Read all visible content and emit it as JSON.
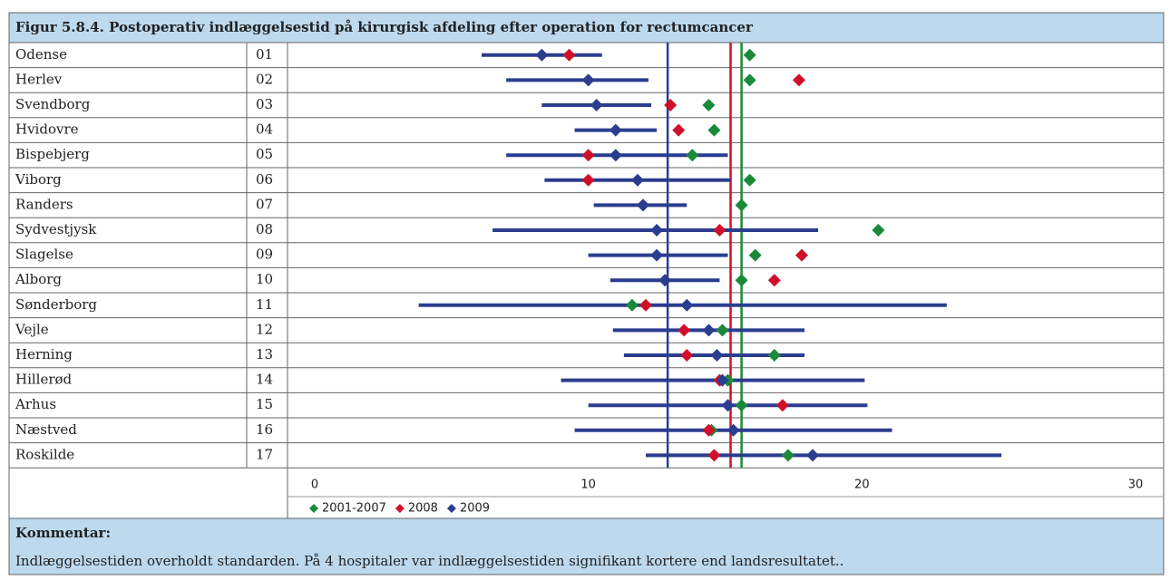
{
  "chart_data": {
    "type": "forest",
    "title": "Figur 5.8.4. Postoperativ indlæggelsestid på kirurgisk afdeling efter operation for rectumcancer",
    "categories": [
      "Odense",
      "Herlev",
      "Svendborg",
      "Hvidovre",
      "Bispebjerg",
      "Viborg",
      "Randers",
      "Sydvestjysk",
      "Slagelse",
      "Alborg",
      "Sønderborg",
      "Vejle",
      "Herning",
      "Hillerød",
      "Arhus",
      "Næstved",
      "Roskilde"
    ],
    "codes": [
      "01",
      "02",
      "03",
      "04",
      "05",
      "06",
      "07",
      "08",
      "09",
      "10",
      "11",
      "12",
      "13",
      "14",
      "15",
      "16",
      "17"
    ],
    "xlim": [
      0,
      30
    ],
    "xticks": [
      0,
      10,
      20,
      30
    ],
    "series": [
      {
        "name": "2001-2007",
        "color": "#1a8a3a",
        "line": 15.6,
        "values": [
          15.9,
          15.9,
          14.4,
          14.6,
          13.8,
          15.9,
          15.6,
          20.6,
          16.1,
          15.6,
          11.6,
          14.9,
          16.8,
          15.1,
          15.6,
          14.5,
          17.3
        ]
      },
      {
        "name": "2008",
        "color": "#d0102a",
        "line": 15.2,
        "values": [
          9.3,
          17.7,
          13.0,
          13.3,
          10.0,
          10.0,
          12.0,
          14.8,
          17.8,
          16.8,
          12.1,
          13.5,
          13.6,
          14.8,
          17.1,
          14.4,
          14.6
        ]
      },
      {
        "name": "2009",
        "color": "#2b3d8f",
        "line": 12.9,
        "values": [
          8.3,
          10.0,
          10.3,
          11.0,
          11.0,
          11.8,
          12.0,
          12.5,
          12.5,
          12.8,
          13.6,
          14.4,
          14.7,
          14.9,
          15.1,
          15.3,
          18.2
        ],
        "lower": [
          6.1,
          7.0,
          8.3,
          9.5,
          7.0,
          8.4,
          10.2,
          6.5,
          10.0,
          10.8,
          3.8,
          10.9,
          11.3,
          9.0,
          10.0,
          9.5,
          12.1
        ],
        "upper": [
          10.5,
          12.2,
          12.3,
          12.5,
          15.1,
          15.2,
          13.6,
          18.4,
          15.1,
          14.8,
          23.1,
          17.9,
          17.9,
          20.1,
          20.2,
          21.1,
          25.1
        ]
      }
    ]
  },
  "comment": {
    "heading": "Kommentar:",
    "text": "Indlæggelsestiden overholdt standarden. På 4 hospitaler var indlæggelsestiden signifikant kortere end landsresultatet.."
  }
}
